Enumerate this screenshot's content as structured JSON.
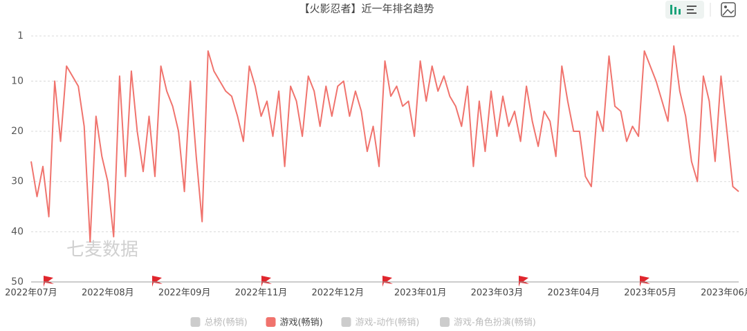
{
  "chart_data": {
    "type": "line",
    "title": "【火影忍者】近一年排名趋势",
    "watermark": "七麦数据",
    "categories": [
      "2022年07月",
      null,
      null,
      null,
      null,
      null,
      null,
      null,
      null,
      null,
      null,
      null,
      null,
      "2022年08月",
      null,
      null,
      null,
      null,
      null,
      null,
      null,
      null,
      null,
      null,
      null,
      null,
      "2022年09月",
      null,
      null,
      null,
      null,
      null,
      null,
      null,
      null,
      null,
      null,
      null,
      null,
      "2022年11月",
      null,
      null,
      null,
      null,
      null,
      null,
      null,
      null,
      null,
      null,
      null,
      null,
      "2022年12月",
      null,
      null,
      null,
      null,
      null,
      null,
      null,
      null,
      null,
      null,
      null,
      null,
      null,
      "2023年01月",
      null,
      null,
      null,
      null,
      null,
      null,
      null,
      null,
      null,
      null,
      null,
      null,
      "2023年03月",
      null,
      null,
      null,
      null,
      null,
      null,
      null,
      null,
      null,
      null,
      null,
      null,
      "2023年04月",
      null,
      null,
      null,
      null,
      null,
      null,
      null,
      null,
      null,
      null,
      null,
      null,
      "2023年05月",
      null,
      null,
      null,
      null,
      null,
      null,
      null,
      null,
      null,
      null,
      null,
      null,
      "2023年06月",
      null,
      null
    ],
    "series": [
      {
        "name": "总榜(畅销)",
        "color": "#cccccc",
        "hidden": true
      },
      {
        "name": "游戏(畅销)",
        "color": "#f0736d",
        "hidden": false,
        "values": [
          26,
          33,
          27,
          37,
          10,
          22,
          7,
          9,
          11,
          19,
          42,
          17,
          25,
          30,
          41,
          9,
          29,
          8,
          20,
          28,
          17,
          29,
          7,
          12,
          15,
          20,
          32,
          10,
          25,
          38,
          4,
          8,
          10,
          12,
          13,
          17,
          22,
          7,
          11,
          17,
          14,
          21,
          12,
          27,
          11,
          14,
          21,
          9,
          12,
          19,
          11,
          17,
          11,
          10,
          17,
          12,
          16,
          24,
          19,
          27,
          6,
          13,
          11,
          15,
          14,
          21,
          6,
          14,
          7,
          12,
          9,
          13,
          15,
          19,
          11,
          27,
          14,
          24,
          12,
          21,
          13,
          19,
          16,
          22,
          11,
          18,
          23,
          16,
          18,
          25,
          7,
          14,
          20,
          20,
          29,
          31,
          16,
          20,
          5,
          15,
          16,
          22,
          19,
          21,
          4,
          7,
          10,
          14,
          18,
          3,
          12,
          17,
          26,
          30,
          9,
          14,
          26,
          9,
          20,
          31,
          32
        ]
      },
      {
        "name": "游戏-动作(畅销)",
        "color": "#cccccc",
        "hidden": true
      },
      {
        "name": "游戏-角色扮演(畅销)",
        "color": "#cccccc",
        "hidden": true
      }
    ],
    "ylim": [
      1,
      50
    ],
    "yticks": [
      1,
      10,
      20,
      30,
      40,
      50
    ],
    "y_inverted": true,
    "grid": true
  }
}
